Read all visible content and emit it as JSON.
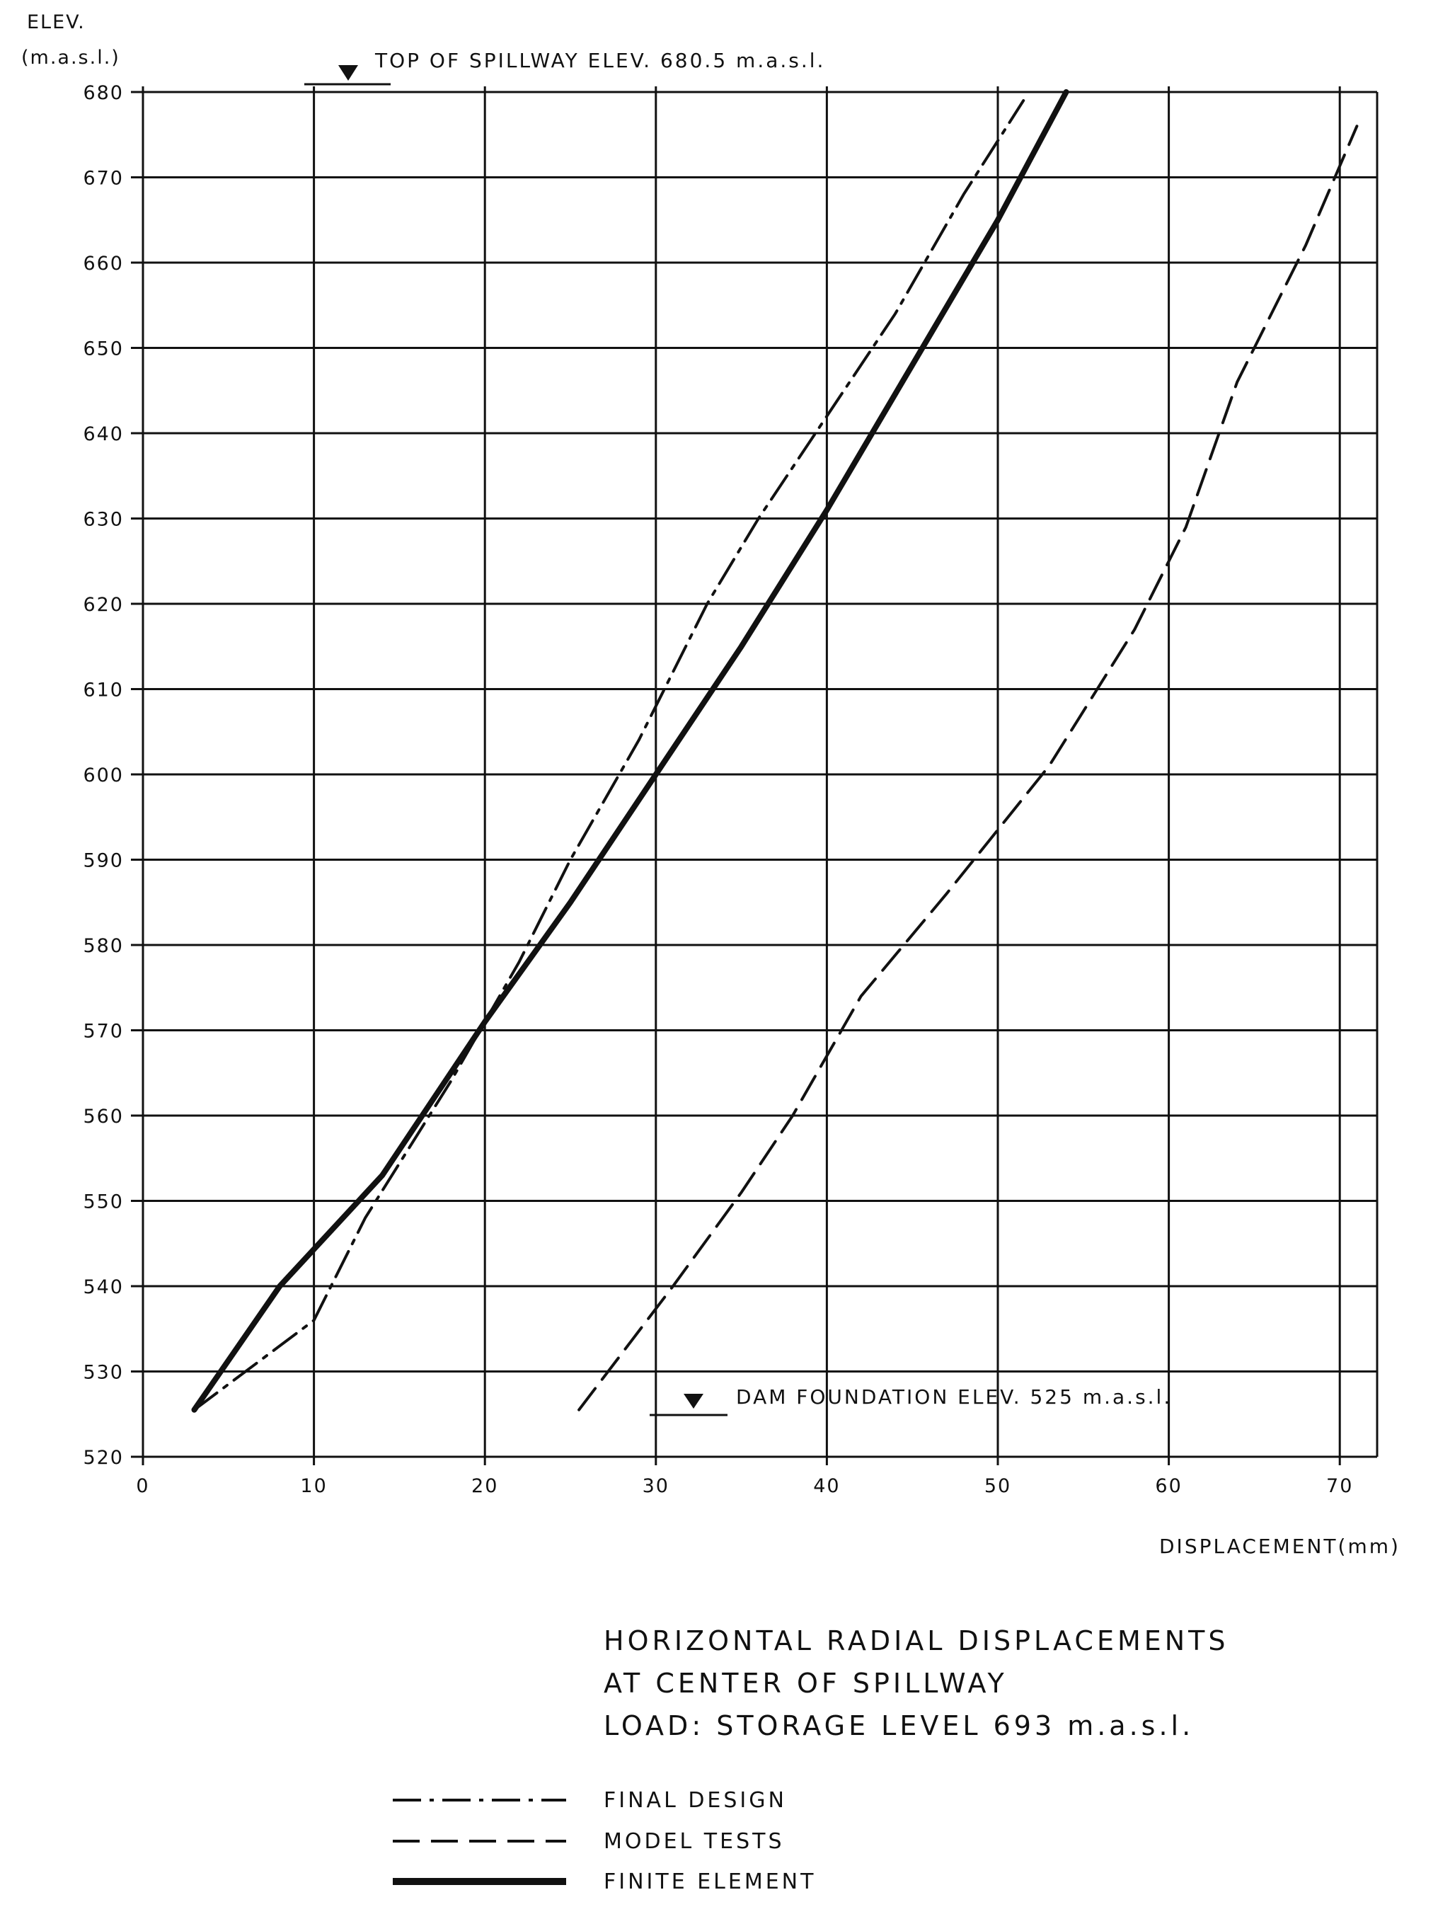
{
  "chart_data": {
    "type": "line",
    "ylabel_line1": "ELEV.",
    "ylabel_line2": "(m.a.s.l.)",
    "xlabel": "DISPLACEMENT(mm)",
    "xlim": [
      0,
      72
    ],
    "ylim": [
      520,
      680
    ],
    "x_ticks": [
      0,
      10,
      20,
      30,
      40,
      50,
      60,
      70
    ],
    "y_ticks": [
      520,
      530,
      540,
      550,
      560,
      570,
      580,
      590,
      600,
      610,
      620,
      630,
      640,
      650,
      660,
      670,
      680
    ],
    "grid": true,
    "annotations": {
      "top_of_spillway": "TOP OF SPILLWAY ELEV. 680.5 m.a.s.l.",
      "dam_foundation": "DAM FOUNDATION ELEV. 525 m.a.s.l."
    },
    "caption": [
      "HORIZONTAL RADIAL DISPLACEMENTS",
      "AT CENTER OF SPILLWAY",
      "LOAD: STORAGE LEVEL 693 m.a.s.l."
    ],
    "series": [
      {
        "name": "FINAL DESIGN",
        "style": "dash-dot",
        "points": [
          [
            3,
            525.5
          ],
          [
            10,
            536
          ],
          [
            13,
            548
          ],
          [
            18,
            564
          ],
          [
            22,
            578
          ],
          [
            25,
            590
          ],
          [
            29,
            604
          ],
          [
            33,
            620
          ],
          [
            36,
            630
          ],
          [
            40,
            642
          ],
          [
            44,
            654
          ],
          [
            48,
            668
          ],
          [
            51.5,
            679
          ]
        ]
      },
      {
        "name": "MODEL TESTS",
        "style": "dashed",
        "points": [
          [
            25.5,
            525.5
          ],
          [
            31,
            540
          ],
          [
            35,
            551
          ],
          [
            38,
            560
          ],
          [
            42,
            574
          ],
          [
            47,
            586
          ],
          [
            53,
            601
          ],
          [
            58,
            617
          ],
          [
            61,
            629
          ],
          [
            64,
            646
          ],
          [
            68,
            662
          ],
          [
            71,
            676
          ]
        ]
      },
      {
        "name": "FINITE ELEMENT",
        "style": "solid-thick",
        "points": [
          [
            3,
            525.5
          ],
          [
            8,
            540
          ],
          [
            14,
            553
          ],
          [
            20,
            571
          ],
          [
            25,
            585
          ],
          [
            30,
            600
          ],
          [
            35,
            615
          ],
          [
            40,
            631
          ],
          [
            45,
            648
          ],
          [
            50,
            665
          ],
          [
            54,
            680
          ]
        ]
      }
    ]
  }
}
